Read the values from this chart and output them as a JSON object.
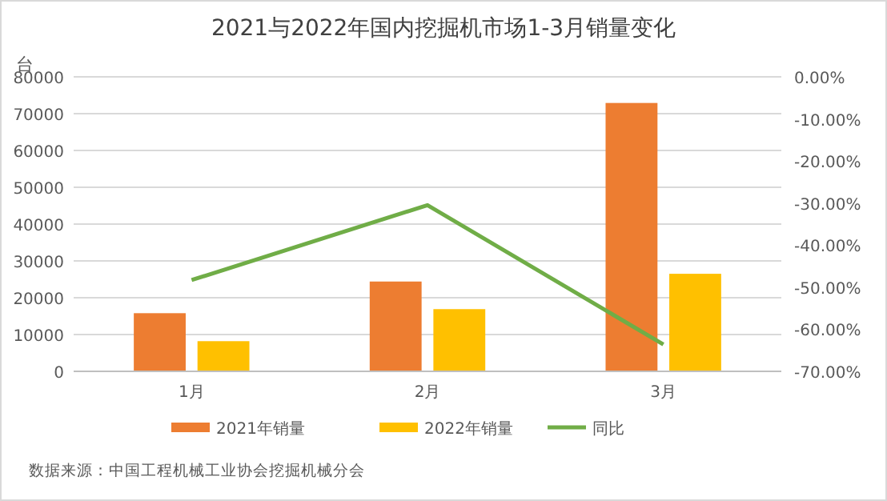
{
  "chart_data": {
    "type": "bar",
    "title": "2021与2022年国内挖掘机市场1-3月销量变化",
    "ylabel": "台",
    "categories": [
      "1月",
      "2月",
      "3月"
    ],
    "series": [
      {
        "name": "2021年销量",
        "color": "#ed7d31",
        "values": [
          15800,
          24400,
          72900
        ]
      },
      {
        "name": "2022年销量",
        "color": "#ffc000",
        "values": [
          8200,
          16900,
          26500
        ]
      },
      {
        "name": "同比",
        "type": "line",
        "axis": "y2",
        "color": "#70ad47",
        "values": [
          -48.3,
          -30.5,
          -63.6
        ]
      }
    ],
    "ylim": [
      0,
      80000
    ],
    "yticks": [
      0,
      10000,
      20000,
      30000,
      40000,
      50000,
      60000,
      70000,
      80000
    ],
    "y2lim": [
      -70,
      0
    ],
    "y2ticks": [
      {
        "value": 0,
        "label": "0.00%"
      },
      {
        "value": -10,
        "label": "-10.00%"
      },
      {
        "value": -20,
        "label": "-20.00%"
      },
      {
        "value": -30,
        "label": "-30.00%"
      },
      {
        "value": -40,
        "label": "-40.00%"
      },
      {
        "value": -50,
        "label": "-50.00%"
      },
      {
        "value": -60,
        "label": "-60.00%"
      },
      {
        "value": -70,
        "label": "-70.00%"
      }
    ],
    "grid": "y",
    "legend": "bottom",
    "marker": "none",
    "annotations": [
      "数据来源：中国工程机械工业协会挖掘机械分会"
    ]
  }
}
